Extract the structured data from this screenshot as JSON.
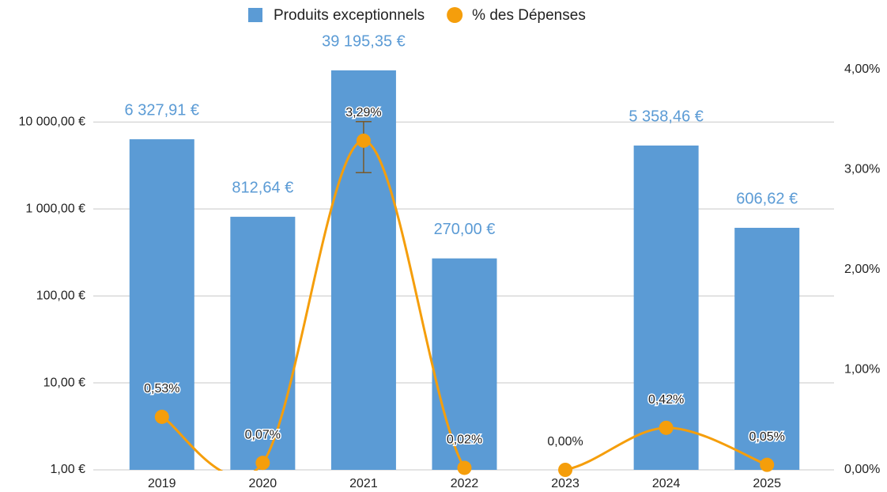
{
  "chart_data": {
    "type": "bar",
    "categories": [
      "2019",
      "2020",
      "2021",
      "2022",
      "2023",
      "2024",
      "2025"
    ],
    "series": [
      {
        "name": "Produits exceptionnels",
        "type": "bar",
        "color": "#5b9bd5",
        "values": [
          6327.91,
          812.64,
          39195.35,
          270.0,
          null,
          5358.46,
          606.62
        ],
        "value_labels": [
          "6 327,91 €",
          "812,64 €",
          "39 195,35 €",
          "270,00 €",
          null,
          "5 358,46 €",
          "606,62 €"
        ]
      },
      {
        "name": "% des Dépenses",
        "type": "line",
        "axis": "y2",
        "color": "#f59e0b",
        "values": [
          0.53,
          0.07,
          3.29,
          0.02,
          0.0,
          0.42,
          0.05
        ],
        "value_labels": [
          "0,53%",
          "0,07%",
          "3,29%",
          "0,02%",
          "0,00%",
          "0,42%",
          "0,05%"
        ],
        "error_low": [
          null,
          null,
          0.32,
          null,
          null,
          null,
          null
        ],
        "error_high": [
          null,
          null,
          0.19,
          null,
          null,
          null,
          null
        ]
      }
    ],
    "ylim": [
      1,
      40000
    ],
    "log_scale": true,
    "yticks": [
      {
        "value": 1,
        "label": "1,00 €"
      },
      {
        "value": 10,
        "label": "10,00 €"
      },
      {
        "value": 100,
        "label": "100,00 €"
      },
      {
        "value": 1000,
        "label": "1 000,00 €"
      },
      {
        "value": 10000,
        "label": "10 000,00 €"
      }
    ],
    "y2lim": [
      0,
      4
    ],
    "y2ticks": [
      {
        "value": 0,
        "label": "0,00%"
      },
      {
        "value": 1,
        "label": "1,00%"
      },
      {
        "value": 2,
        "label": "2,00%"
      },
      {
        "value": 3,
        "label": "3,00%"
      },
      {
        "value": 4,
        "label": "4,00%"
      }
    ],
    "grid": true,
    "legend": "top"
  }
}
